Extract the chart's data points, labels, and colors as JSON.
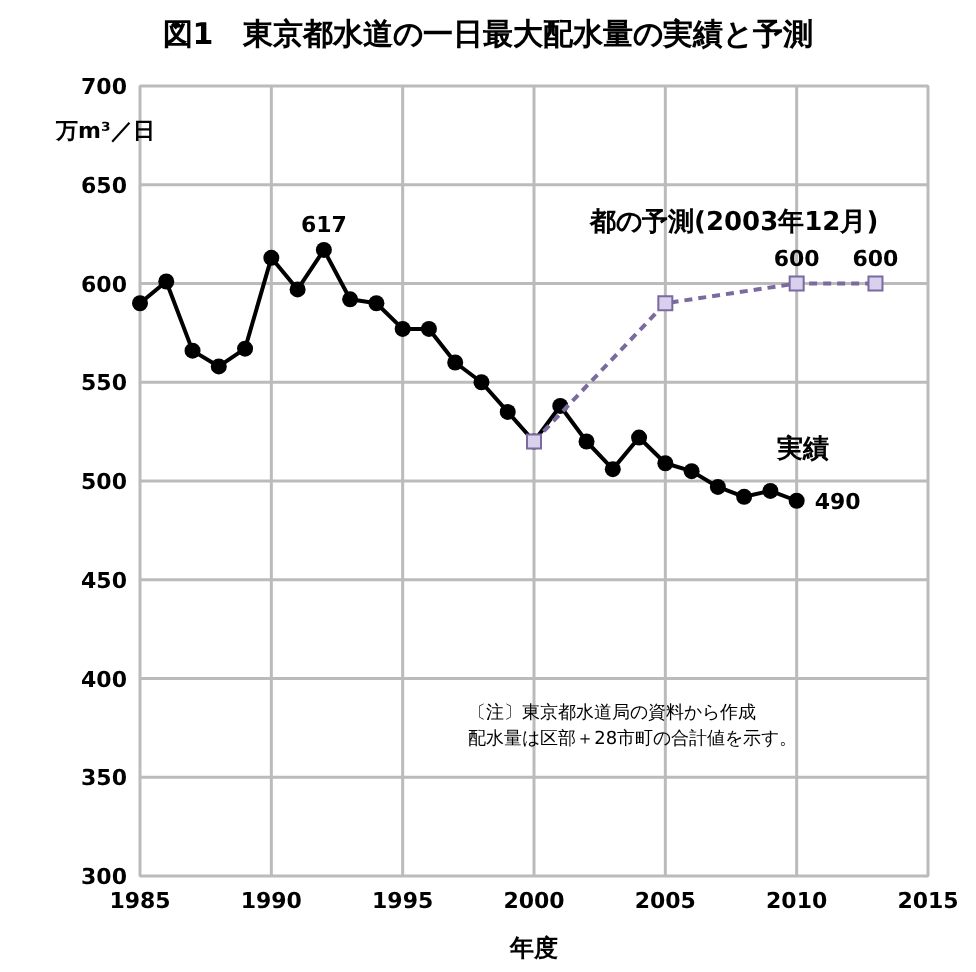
{
  "chart_data": {
    "type": "line",
    "title": "図1　東京都水道の一日最大配水量の実績と予測",
    "xlabel": "年度",
    "ylabel": "万m³／日",
    "xlim": [
      1985,
      2015
    ],
    "xticks": [
      1985,
      1990,
      1995,
      2000,
      2005,
      2010,
      2015
    ],
    "ylim": [
      300,
      700
    ],
    "yticks": [
      300,
      350,
      400,
      450,
      500,
      550,
      600,
      650,
      700
    ],
    "grid": true,
    "series": [
      {
        "name": "実績",
        "color": "#000000",
        "marker": "circle",
        "line_style": "solid",
        "x": [
          1985,
          1986,
          1987,
          1988,
          1989,
          1990,
          1991,
          1992,
          1993,
          1994,
          1995,
          1996,
          1997,
          1998,
          1999,
          2000,
          2001,
          2002,
          2003,
          2004,
          2005,
          2006,
          2007,
          2008,
          2009,
          2010
        ],
        "values": [
          590,
          601,
          566,
          558,
          567,
          613,
          597,
          617,
          592,
          590,
          577,
          577,
          560,
          550,
          535,
          520,
          538,
          520,
          506,
          522,
          509,
          505,
          497,
          492,
          495,
          490
        ],
        "value_labels": [
          null,
          null,
          null,
          null,
          null,
          null,
          null,
          "617",
          null,
          null,
          null,
          null,
          null,
          null,
          null,
          null,
          null,
          null,
          null,
          null,
          null,
          null,
          null,
          null,
          null,
          "490"
        ]
      },
      {
        "name": "都の予測(2003年12月)",
        "color": "#7a6aa0",
        "marker": "square",
        "line_style": "dashed",
        "x": [
          2000,
          2005,
          2010,
          2013
        ],
        "values": [
          520,
          590,
          600,
          600
        ],
        "value_labels": [
          null,
          null,
          "600",
          "600"
        ]
      }
    ],
    "annotations": [
      "〔注〕東京都水道局の資料から作成",
      "配水量は区部＋28市町の合計値を示す。"
    ]
  }
}
